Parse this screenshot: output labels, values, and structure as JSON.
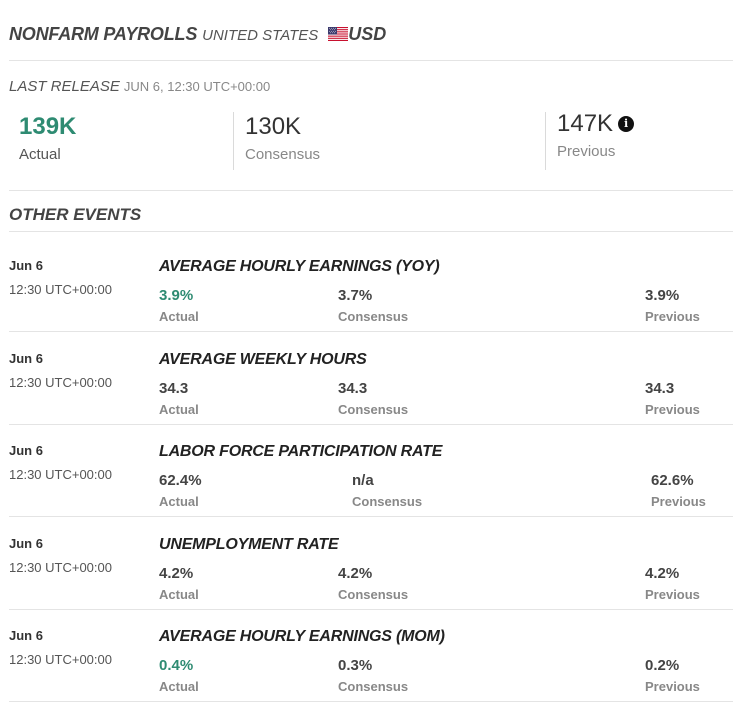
{
  "header": {
    "title": "NONFARM PAYROLLS",
    "country": "UNITED STATES",
    "flag_icon": "us-flag-icon",
    "currency": "USD"
  },
  "last_release": {
    "label": "LAST RELEASE",
    "date": "JUN 6, 12:30 UTC+00:00"
  },
  "stats": {
    "actual": {
      "value": "139K",
      "label": "Actual"
    },
    "consensus": {
      "value": "130K",
      "label": "Consensus"
    },
    "previous": {
      "value": "147K",
      "label": "Previous",
      "info_icon": "i"
    }
  },
  "other_events": {
    "title": "OTHER EVENTS",
    "items": [
      {
        "date": "Jun 6",
        "time": "12:30 UTC+00:00",
        "name": "AVERAGE HOURLY EARNINGS (YOY)",
        "actual": "3.9%",
        "consensus": "3.7%",
        "previous": "3.9%",
        "actual_label": "Actual",
        "consensus_label": "Consensus",
        "previous_label": "Previous"
      },
      {
        "date": "Jun 6",
        "time": "12:30 UTC+00:00",
        "name": "AVERAGE WEEKLY HOURS",
        "actual": "34.3",
        "consensus": "34.3",
        "previous": "34.3",
        "actual_label": "Actual",
        "consensus_label": "Consensus",
        "previous_label": "Previous"
      },
      {
        "date": "Jun 6",
        "time": "12:30 UTC+00:00",
        "name": "LABOR FORCE PARTICIPATION RATE",
        "actual": "62.4%",
        "consensus": "n/a",
        "previous": "62.6%",
        "actual_label": "Actual",
        "consensus_label": "Consensus",
        "previous_label": "Previous"
      },
      {
        "date": "Jun 6",
        "time": "12:30 UTC+00:00",
        "name": "UNEMPLOYMENT RATE",
        "actual": "4.2%",
        "consensus": "4.2%",
        "previous": "4.2%",
        "actual_label": "Actual",
        "consensus_label": "Consensus",
        "previous_label": "Previous"
      },
      {
        "date": "Jun 6",
        "time": "12:30 UTC+00:00",
        "name": "AVERAGE HOURLY EARNINGS (MOM)",
        "actual": "0.4%",
        "consensus": "0.3%",
        "previous": "0.2%",
        "actual_label": "Actual",
        "consensus_label": "Consensus",
        "previous_label": "Previous"
      }
    ]
  },
  "colors": {
    "accent_green": "#2e8b72",
    "text_dark": "#333333",
    "text_muted": "#888888",
    "divider": "#e4e4e4"
  }
}
